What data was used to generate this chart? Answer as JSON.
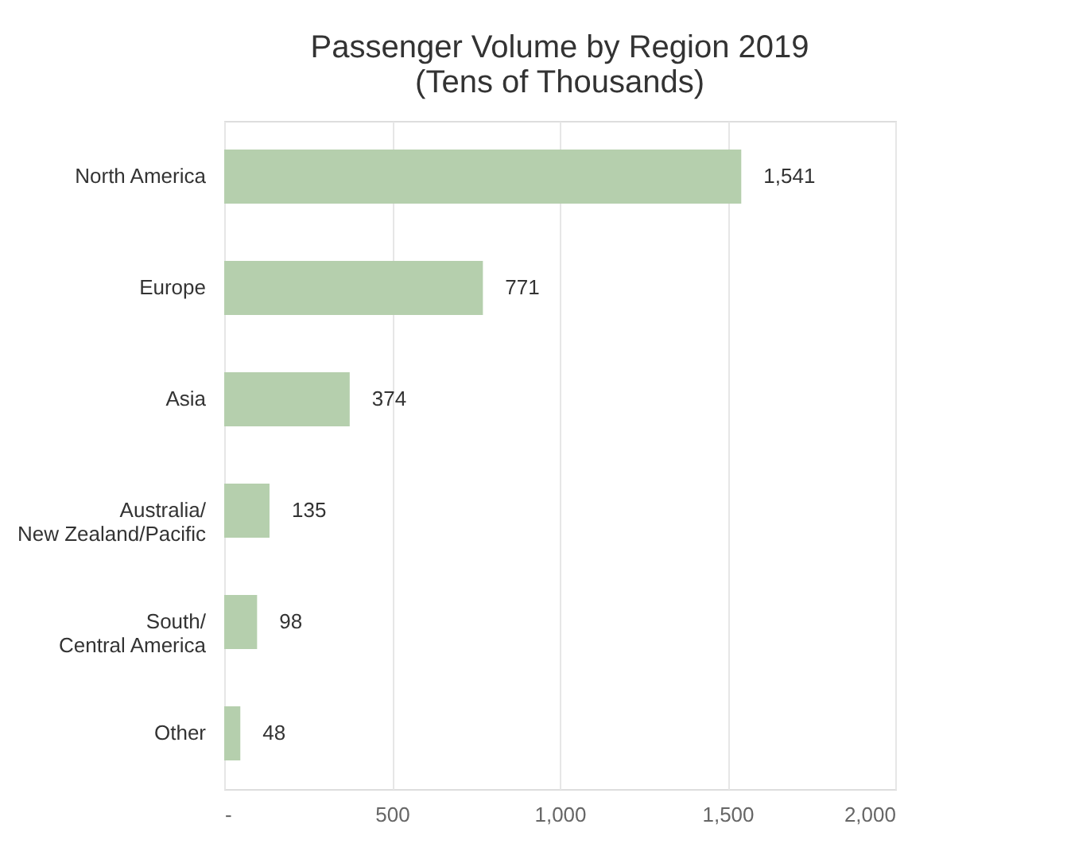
{
  "chart_data": {
    "type": "bar",
    "orientation": "horizontal",
    "title": "Passenger Volume by Region 2019\n(Tens of Thousands)",
    "categories": [
      "North America",
      "Europe",
      "Asia",
      "Australia/\nNew Zealand/Pacific",
      "South/\nCentral America",
      "Other"
    ],
    "values": [
      1541,
      771,
      374,
      135,
      98,
      48
    ],
    "value_labels": [
      "1,541",
      "771",
      "374",
      "135",
      "98",
      "48"
    ],
    "color": "#b5cfad",
    "xlim": [
      0,
      2000
    ],
    "xticks": [
      {
        "value": 0,
        "label": "-"
      },
      500,
      {
        "value": 1000,
        "label": "1,000"
      },
      {
        "value": 1500,
        "label": "1,500"
      },
      {
        "value": 2000,
        "label": "2,000"
      }
    ],
    "grid": "x"
  }
}
